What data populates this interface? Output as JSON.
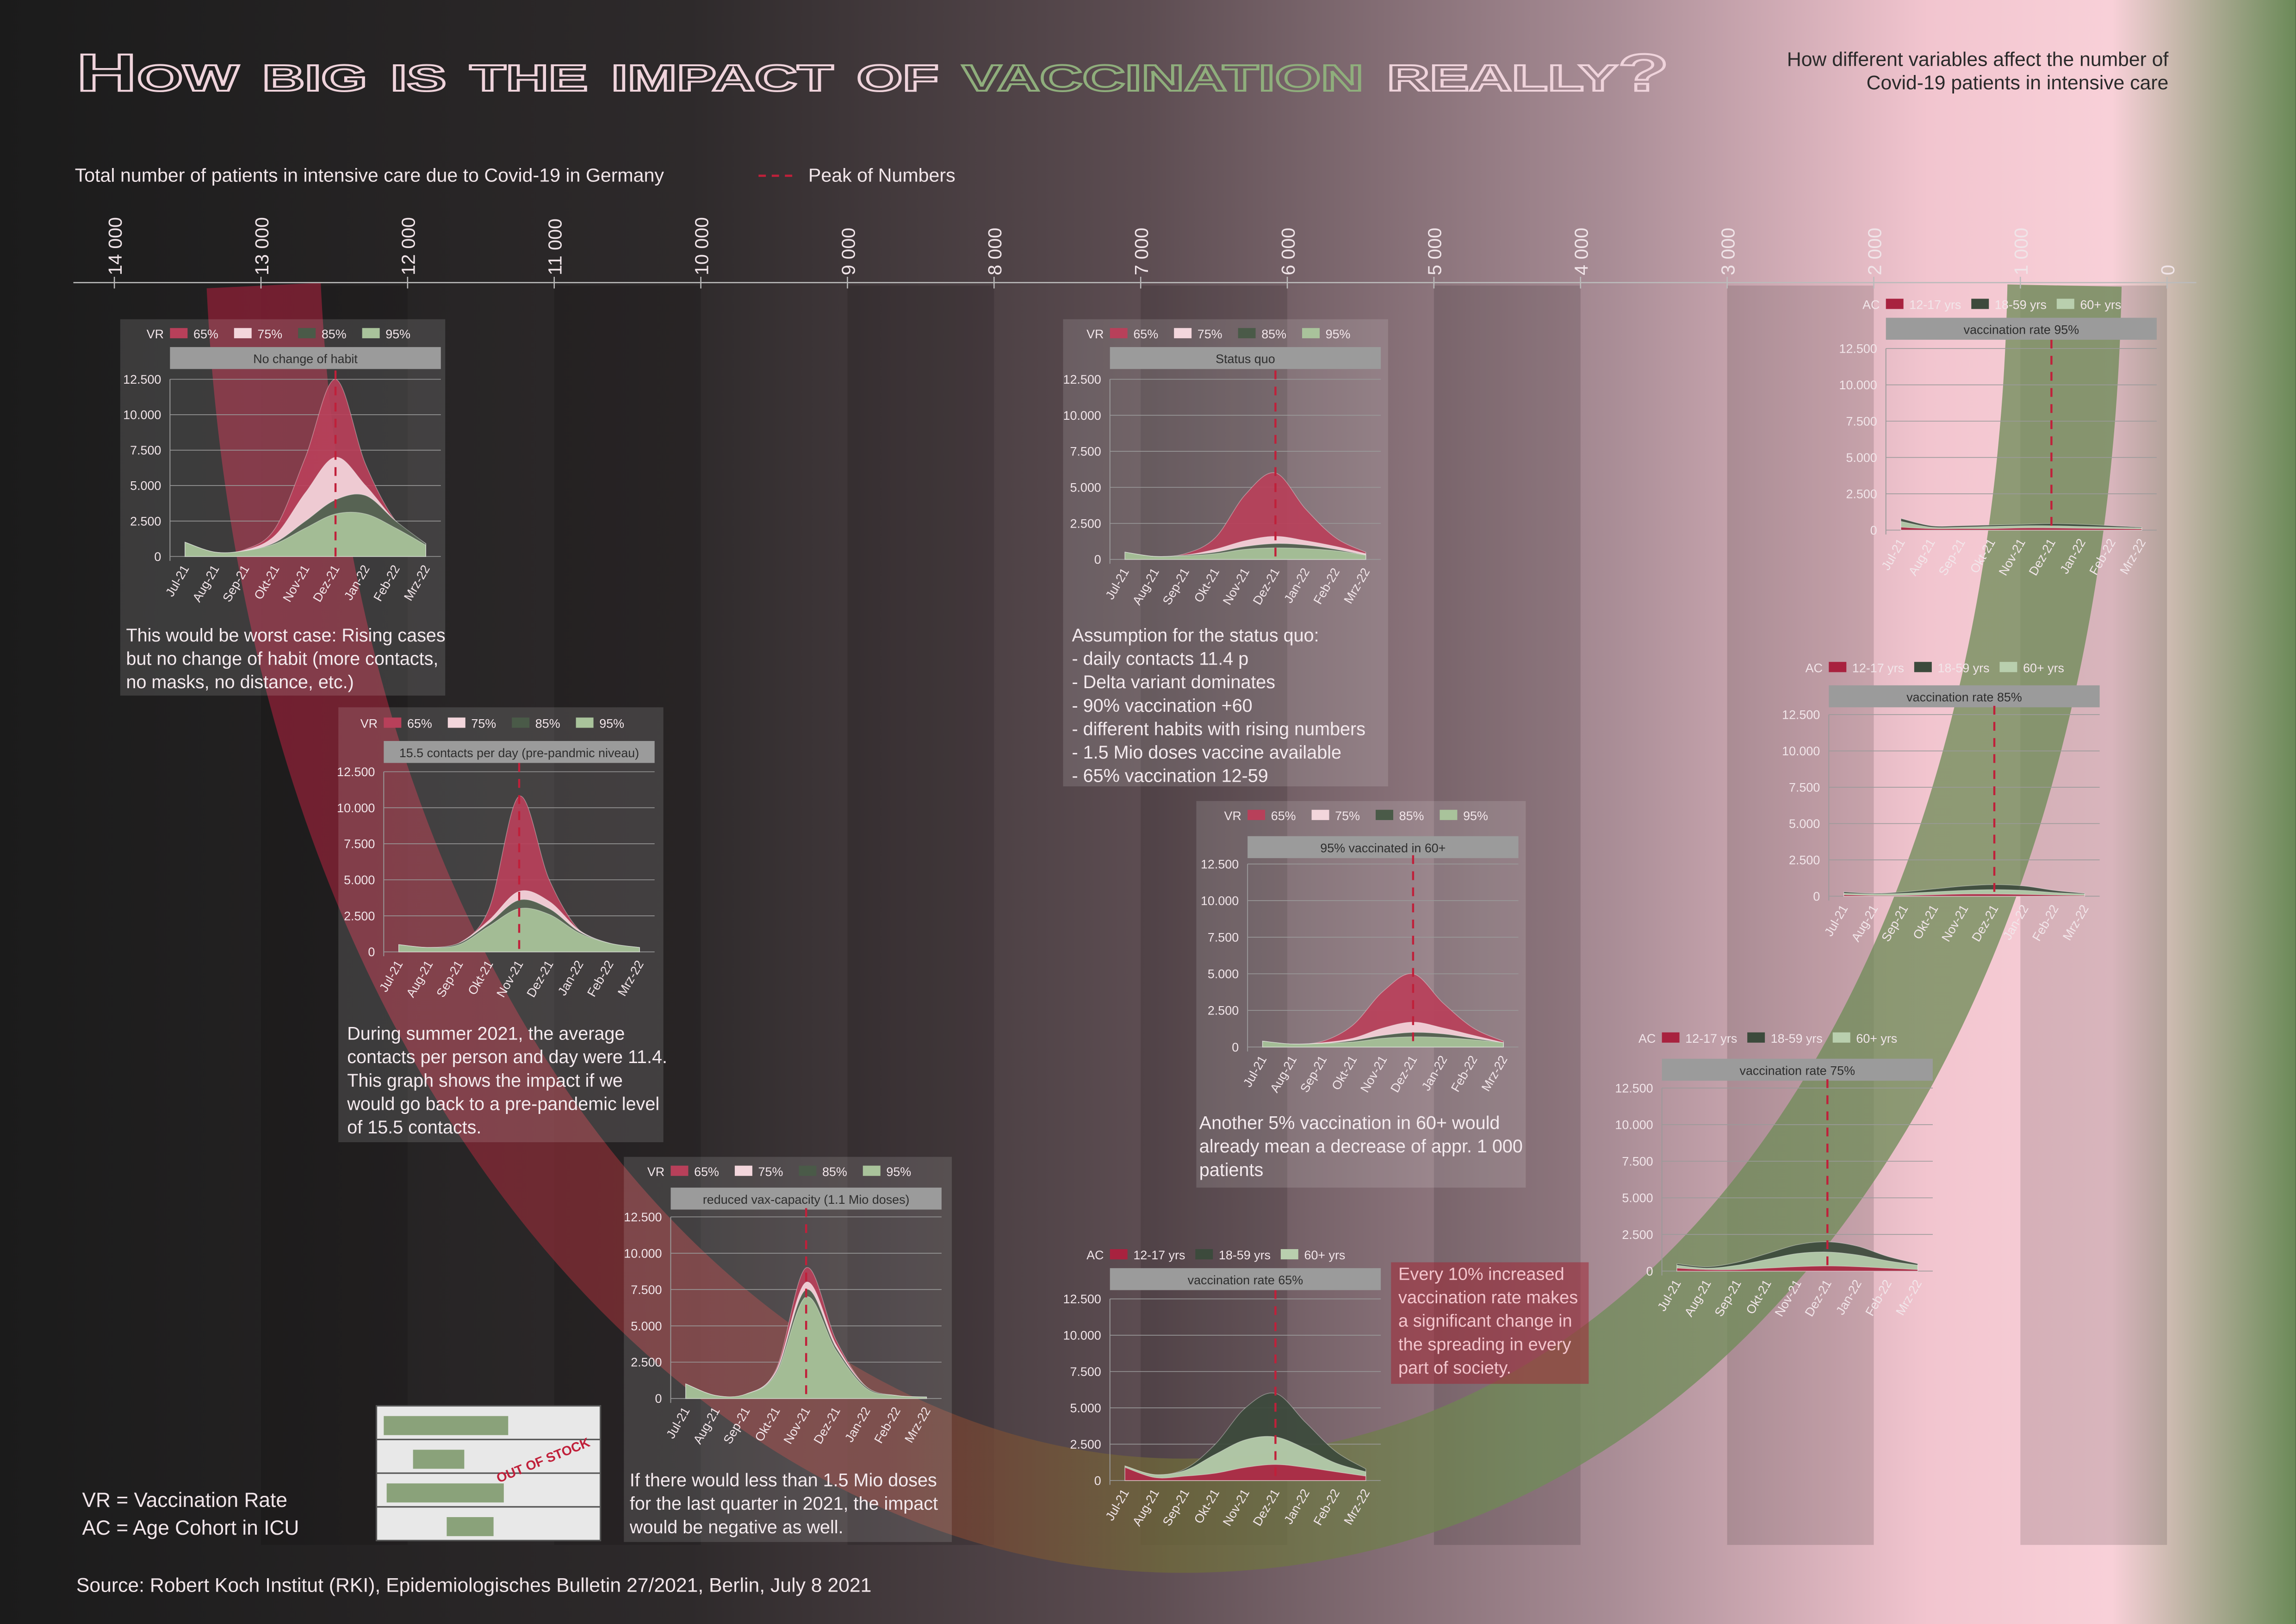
{
  "title": [
    "How big is the impact of",
    "vaccination",
    "really?"
  ],
  "subtitle": [
    "How different variables affect the number of",
    "Covid-19 patients in intensive care"
  ],
  "axis": {
    "label": "Total number of patients in intensive care due to Covid-19 in Germany",
    "xlim": [
      14000,
      0
    ],
    "xticks": [
      {
        "value": 14000,
        "label": "14 000"
      },
      {
        "value": 13000,
        "label": "13 000"
      },
      {
        "value": 12000,
        "label": "12 000"
      },
      {
        "value": 11000,
        "label": "11 000"
      },
      {
        "value": 10000,
        "label": "10 000"
      },
      {
        "value": 9000,
        "label": "9 000"
      },
      {
        "value": 8000,
        "label": "8 000"
      },
      {
        "value": 7000,
        "label": "7 000"
      },
      {
        "value": 6000,
        "label": "6 000"
      },
      {
        "value": 5000,
        "label": "5 000"
      },
      {
        "value": 4000,
        "label": "4 000"
      },
      {
        "value": 3000,
        "label": "3 000"
      },
      {
        "value": 2000,
        "label": "2 000"
      },
      {
        "value": 1000,
        "label": "1 000"
      },
      0
    ]
  },
  "peak_legend": "Peak of Numbers",
  "chart_data": [
    {
      "type": "area",
      "legend_title": "VR",
      "title": "No change of habit",
      "categories": [
        "Jul-21",
        "Aug-21",
        "Sep-21",
        "Okt-21",
        "Nov-21",
        "Dez-21",
        "Jan-22",
        "Feb-22",
        "Mrz-22"
      ],
      "series": [
        {
          "name": "65%",
          "color": "#b8405a",
          "values": [
            1000,
            300,
            500,
            2000,
            7000,
            12500,
            6500,
            2500,
            900
          ]
        },
        {
          "name": "75%",
          "color": "#f3d6dc",
          "values": [
            1000,
            300,
            450,
            1500,
            4500,
            7000,
            5000,
            2500,
            900
          ]
        },
        {
          "name": "85%",
          "color": "#4a5a48",
          "values": [
            1000,
            300,
            400,
            1000,
            2500,
            4000,
            4300,
            2500,
            900
          ]
        },
        {
          "name": "95%",
          "color": "#a9c39b",
          "values": [
            1000,
            300,
            400,
            900,
            2000,
            3000,
            3000,
            2000,
            800
          ]
        }
      ],
      "ylim": [
        0,
        12500
      ],
      "yticks": [
        {
          "value": 12500,
          "label": "12.500"
        },
        {
          "value": 10000,
          "label": "10.000"
        },
        {
          "value": 7500,
          "label": "7.500"
        },
        {
          "value": 5000,
          "label": "5.000"
        },
        {
          "value": 2500,
          "label": "2.500"
        },
        0
      ],
      "grid": true,
      "peak": "Dez-21",
      "note": [
        "This would be worst case: Rising cases",
        "but no change of habit (more contacts,",
        "no masks, no distance, etc.)"
      ]
    },
    {
      "type": "area",
      "legend_title": "VR",
      "title": "15.5 contacts per day (pre-pandmic niveau)",
      "categories": [
        "Jul-21",
        "Aug-21",
        "Sep-21",
        "Okt-21",
        "Nov-21",
        "Dez-21",
        "Jan-22",
        "Feb-22",
        "Mrz-22"
      ],
      "series": [
        {
          "name": "65%",
          "color": "#b8405a",
          "values": [
            500,
            300,
            600,
            3000,
            10800,
            5000,
            1500,
            600,
            300
          ]
        },
        {
          "name": "75%",
          "color": "#f3d6dc",
          "values": [
            500,
            300,
            600,
            2200,
            4200,
            3500,
            1500,
            600,
            300
          ]
        },
        {
          "name": "85%",
          "color": "#4a5a48",
          "values": [
            500,
            300,
            600,
            2000,
            3600,
            3000,
            1400,
            600,
            300
          ]
        },
        {
          "name": "95%",
          "color": "#a9c39b",
          "values": [
            500,
            300,
            500,
            1800,
            3000,
            2600,
            1300,
            600,
            300
          ]
        }
      ],
      "ylim": [
        0,
        12500
      ],
      "yticks": [
        {
          "value": 12500,
          "label": "12.500"
        },
        {
          "value": 10000,
          "label": "10.000"
        },
        {
          "value": 7500,
          "label": "7.500"
        },
        {
          "value": 5000,
          "label": "5.000"
        },
        {
          "value": 2500,
          "label": "2.500"
        },
        0
      ],
      "grid": true,
      "peak": "Nov-21",
      "note": [
        "During summer 2021, the average",
        "contacts per person and day were 11.4.",
        "This graph shows the impact if we",
        "would go back to a pre-pandemic level",
        "of 15.5 contacts."
      ]
    },
    {
      "type": "area",
      "legend_title": "VR",
      "title": "reduced vax-capacity (1.1 Mio doses)",
      "categories": [
        "Jul-21",
        "Aug-21",
        "Sep-21",
        "Okt-21",
        "Nov-21",
        "Dez-21",
        "Jan-22",
        "Feb-22",
        "Mrz-22"
      ],
      "series": [
        {
          "name": "65%",
          "color": "#b8405a",
          "values": [
            1000,
            200,
            300,
            2000,
            9000,
            4000,
            800,
            200,
            100
          ]
        },
        {
          "name": "75%",
          "color": "#f3d6dc",
          "values": [
            1000,
            200,
            300,
            1900,
            8000,
            3700,
            800,
            200,
            100
          ]
        },
        {
          "name": "85%",
          "color": "#4a5a48",
          "values": [
            1000,
            200,
            300,
            1800,
            7500,
            3500,
            800,
            200,
            100
          ]
        },
        {
          "name": "95%",
          "color": "#a9c39b",
          "values": [
            1000,
            200,
            300,
            1700,
            7000,
            3300,
            700,
            200,
            100
          ]
        }
      ],
      "ylim": [
        0,
        12500
      ],
      "yticks": [
        {
          "value": 12500,
          "label": "12.500"
        },
        {
          "value": 10000,
          "label": "10.000"
        },
        {
          "value": 7500,
          "label": "7.500"
        },
        {
          "value": 5000,
          "label": "5.000"
        },
        {
          "value": 2500,
          "label": "2.500"
        },
        0
      ],
      "grid": true,
      "peak": "Nov-21",
      "note": [
        "If there would less than 1.5 Mio doses",
        "for the last quarter in 2021, the impact",
        "would be negative as well."
      ]
    },
    {
      "type": "area",
      "legend_title": "VR",
      "title": "Status quo",
      "categories": [
        "Jul-21",
        "Aug-21",
        "Sep-21",
        "Okt-21",
        "Nov-21",
        "Dez-21",
        "Jan-22",
        "Feb-22",
        "Mrz-22"
      ],
      "series": [
        {
          "name": "65%",
          "color": "#b8405a",
          "values": [
            500,
            200,
            400,
            1500,
            4500,
            6000,
            3500,
            1500,
            500
          ]
        },
        {
          "name": "75%",
          "color": "#f3d6dc",
          "values": [
            500,
            200,
            300,
            700,
            1300,
            1600,
            1300,
            900,
            400
          ]
        },
        {
          "name": "85%",
          "color": "#4a5a48",
          "values": [
            500,
            200,
            300,
            500,
            900,
            1100,
            1000,
            700,
            300
          ]
        },
        {
          "name": "95%",
          "color": "#a9c39b",
          "values": [
            500,
            200,
            250,
            400,
            700,
            800,
            750,
            600,
            300
          ]
        }
      ],
      "ylim": [
        0,
        12500
      ],
      "yticks": [
        {
          "value": 12500,
          "label": "12.500"
        },
        {
          "value": 10000,
          "label": "10.000"
        },
        {
          "value": 7500,
          "label": "7.500"
        },
        {
          "value": 5000,
          "label": "5.000"
        },
        {
          "value": 2500,
          "label": "2.500"
        },
        0
      ],
      "grid": true,
      "peak": "Dez-21",
      "note": [
        "Assumption for the status quo:",
        "- daily contacts 11.4 p",
        "- Delta variant dominates",
        "- 90% vaccination +60",
        "- different habits with rising numbers",
        "- 1.5 Mio doses vaccine available",
        "- 65% vaccination 12-59"
      ]
    },
    {
      "type": "area",
      "legend_title": "VR",
      "title": "95% vaccinated in 60+",
      "categories": [
        "Jul-21",
        "Aug-21",
        "Sep-21",
        "Okt-21",
        "Nov-21",
        "Dez-21",
        "Jan-22",
        "Feb-22",
        "Mrz-22"
      ],
      "series": [
        {
          "name": "65%",
          "color": "#b8405a",
          "values": [
            400,
            200,
            400,
            1500,
            3800,
            5000,
            3000,
            1300,
            400
          ]
        },
        {
          "name": "75%",
          "color": "#f3d6dc",
          "values": [
            400,
            200,
            300,
            600,
            1300,
            1700,
            1300,
            800,
            300
          ]
        },
        {
          "name": "85%",
          "color": "#4a5a48",
          "values": [
            400,
            200,
            250,
            450,
            800,
            1000,
            900,
            600,
            300
          ]
        },
        {
          "name": "95%",
          "color": "#a9c39b",
          "values": [
            400,
            200,
            250,
            350,
            600,
            700,
            650,
            500,
            300
          ]
        }
      ],
      "ylim": [
        0,
        12500
      ],
      "yticks": [
        {
          "value": 12500,
          "label": "12.500"
        },
        {
          "value": 10000,
          "label": "10.000"
        },
        {
          "value": 7500,
          "label": "7.500"
        },
        {
          "value": 5000,
          "label": "5.000"
        },
        {
          "value": 2500,
          "label": "2.500"
        },
        0
      ],
      "grid": true,
      "peak": "Dez-21",
      "note": [
        "Another 5% vaccination in 60+ would",
        "already mean a decrease of appr. 1 000",
        "patients"
      ]
    },
    {
      "type": "area",
      "legend_title": "AC",
      "title": "vaccination rate 65%",
      "categories": [
        "Jul-21",
        "Aug-21",
        "Sep-21",
        "Okt-21",
        "Nov-21",
        "Dez-21",
        "Jan-22",
        "Feb-22",
        "Mrz-22"
      ],
      "series": [
        {
          "name": "12-17 yrs",
          "color": "#a8223f",
          "values": [
            900,
            200,
            300,
            500,
            900,
            1100,
            900,
            600,
            300
          ]
        },
        {
          "name": "18-59 yrs",
          "color": "#3c4a3c",
          "values": [
            1000,
            400,
            800,
            2500,
            5000,
            6000,
            4000,
            2000,
            800
          ]
        },
        {
          "name": "60+ yrs",
          "color": "#b9cfae",
          "values": [
            1000,
            400,
            700,
            1800,
            2800,
            3000,
            2200,
            1200,
            600
          ]
        }
      ],
      "ylim": [
        0,
        12500
      ],
      "yticks": [
        {
          "value": 12500,
          "label": "12.500"
        },
        {
          "value": 10000,
          "label": "10.000"
        },
        {
          "value": 7500,
          "label": "7.500"
        },
        {
          "value": 5000,
          "label": "5.000"
        },
        {
          "value": 2500,
          "label": "2.500"
        },
        0
      ],
      "grid": true,
      "peak": "Dez-21",
      "note": [
        "Every 10% increased",
        "vaccination rate makes",
        "a significant change in",
        "the spreading in every",
        "part of society."
      ]
    },
    {
      "type": "area",
      "legend_title": "AC",
      "title": "vaccination rate 75%",
      "categories": [
        "Jul-21",
        "Aug-21",
        "Sep-21",
        "Okt-21",
        "Nov-21",
        "Dez-21",
        "Jan-22",
        "Feb-22",
        "Mrz-22"
      ],
      "series": [
        {
          "name": "12-17 yrs",
          "color": "#a8223f",
          "values": [
            200,
            100,
            100,
            200,
            300,
            350,
            300,
            200,
            100
          ]
        },
        {
          "name": "18-59 yrs",
          "color": "#3c4a3c",
          "values": [
            500,
            300,
            600,
            1200,
            1800,
            2000,
            1700,
            1000,
            500
          ]
        },
        {
          "name": "60+ yrs",
          "color": "#b9cfae",
          "values": [
            400,
            200,
            400,
            800,
            1200,
            1300,
            1100,
            700,
            400
          ]
        }
      ],
      "ylim": [
        0,
        12500
      ],
      "yticks": [
        {
          "value": 12500,
          "label": "12.500"
        },
        {
          "value": 10000,
          "label": "10.000"
        },
        {
          "value": 7500,
          "label": "7.500"
        },
        {
          "value": 5000,
          "label": "5.000"
        },
        {
          "value": 2500,
          "label": "2.500"
        },
        0
      ],
      "grid": true,
      "peak": "Dez-21"
    },
    {
      "type": "area",
      "legend_title": "AC",
      "title": "vaccination rate 85%",
      "categories": [
        "Jul-21",
        "Aug-21",
        "Sep-21",
        "Okt-21",
        "Nov-21",
        "Dez-21",
        "Jan-22",
        "Feb-22",
        "Mrz-22"
      ],
      "series": [
        {
          "name": "12-17 yrs",
          "color": "#a8223f",
          "values": [
            100,
            50,
            50,
            100,
            150,
            150,
            120,
            80,
            50
          ]
        },
        {
          "name": "18-59 yrs",
          "color": "#3c4a3c",
          "values": [
            300,
            200,
            300,
            500,
            700,
            800,
            700,
            400,
            200
          ]
        },
        {
          "name": "60+ yrs",
          "color": "#b9cfae",
          "values": [
            200,
            150,
            200,
            300,
            400,
            450,
            400,
            250,
            150
          ]
        }
      ],
      "ylim": [
        0,
        12500
      ],
      "yticks": [
        {
          "value": 12500,
          "label": "12.500"
        },
        {
          "value": 10000,
          "label": "10.000"
        },
        {
          "value": 7500,
          "label": "7.500"
        },
        {
          "value": 5000,
          "label": "5.000"
        },
        {
          "value": 2500,
          "label": "2.500"
        },
        0
      ],
      "grid": true,
      "peak": "Dez-21"
    },
    {
      "type": "area",
      "legend_title": "AC",
      "title": "vaccination rate 95%",
      "categories": [
        "Jul-21",
        "Aug-21",
        "Sep-21",
        "Okt-21",
        "Nov-21",
        "Dez-21",
        "Jan-22",
        "Feb-22",
        "Mrz-22"
      ],
      "series": [
        {
          "name": "12-17 yrs",
          "color": "#a8223f",
          "values": [
            200,
            100,
            100,
            100,
            150,
            150,
            120,
            100,
            80
          ]
        },
        {
          "name": "18-59 yrs",
          "color": "#3c4a3c",
          "values": [
            800,
            300,
            300,
            350,
            400,
            450,
            400,
            300,
            200
          ]
        },
        {
          "name": "60+ yrs",
          "color": "#b9cfae",
          "values": [
            600,
            200,
            200,
            250,
            300,
            300,
            250,
            200,
            150
          ]
        }
      ],
      "ylim": [
        0,
        12500
      ],
      "yticks": [
        {
          "value": 12500,
          "label": "12.500"
        },
        {
          "value": 10000,
          "label": "10.000"
        },
        {
          "value": 7500,
          "label": "7.500"
        },
        {
          "value": 5000,
          "label": "5.000"
        },
        {
          "value": 2500,
          "label": "2.500"
        },
        0
      ],
      "grid": true,
      "peak": "Dez-21"
    }
  ],
  "out_of_stock": "OUT OF STOCK",
  "abbreviations": [
    "VR = Vaccination Rate",
    "AC = Age Cohort in ICU"
  ],
  "source": "Source: Robert Koch Institut (RKI), Epidemiologisches Bulletin 27/2021, Berlin, July 8 2021"
}
